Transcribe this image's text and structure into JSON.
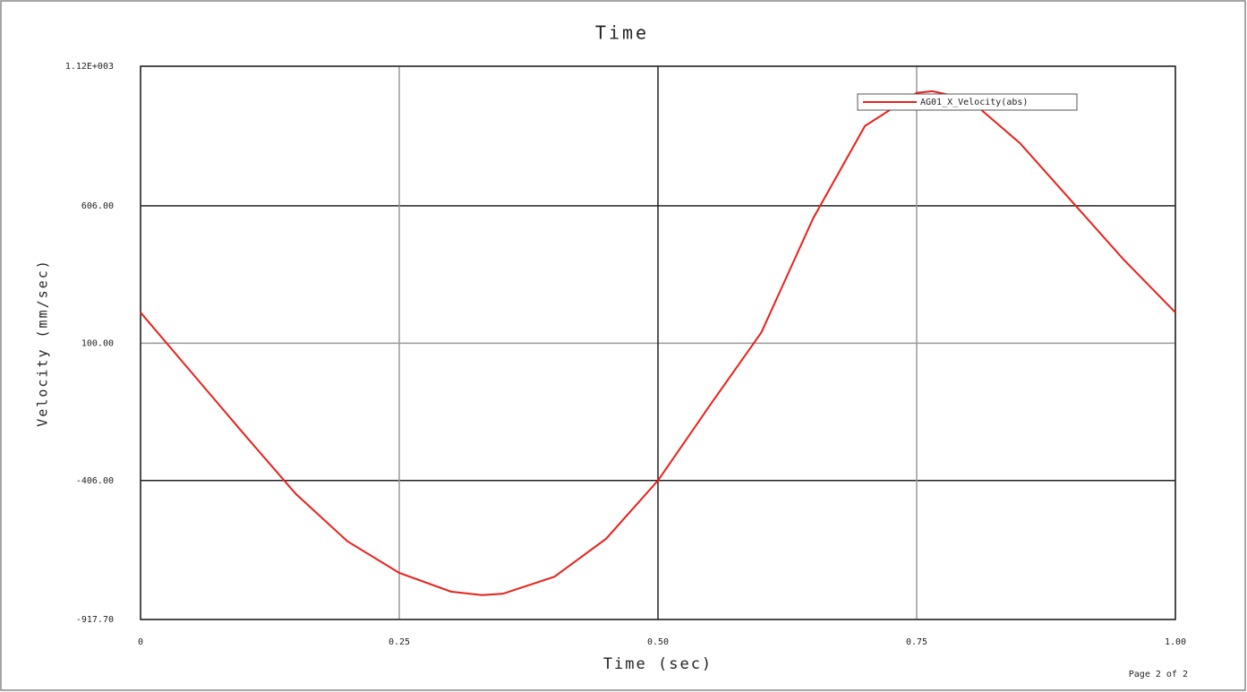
{
  "chart_data": {
    "type": "line",
    "title": "Time",
    "x_label": "Time (sec)",
    "y_label": "Velocity (mm/sec)",
    "footer": "Page 2 of 2",
    "x": [
      0,
      0.05,
      0.1,
      0.15,
      0.2,
      0.25,
      0.3,
      0.33,
      0.35,
      0.4,
      0.45,
      0.5,
      0.55,
      0.6,
      0.65,
      0.7,
      0.75,
      0.765,
      0.8,
      0.85,
      0.9,
      0.95,
      1.0
    ],
    "series": [
      {
        "name": "AG01_X_Velocity(abs)",
        "color": "#e8201a",
        "values": [
          213,
          -11,
          -235,
          -455,
          -630,
          -746,
          -815,
          -828,
          -823,
          -760,
          -620,
          -406,
          -130,
          140,
          560,
          900,
          1022,
          1028,
          1000,
          836,
          622,
          408,
          213
        ]
      }
    ],
    "xlim": [
      0,
      1.0
    ],
    "xticks": [
      0,
      {
        "value": 0.25,
        "label": "0.25"
      },
      {
        "value": 0.5,
        "label": "0.50"
      },
      {
        "value": 0.75,
        "label": "0.75"
      },
      {
        "value": 1.0,
        "label": "1.00"
      }
    ],
    "ylim": [
      -917.7,
      1120
    ],
    "yticks": [
      {
        "value": -917.7,
        "label": "-917.70"
      },
      {
        "value": -406,
        "label": "-406.00"
      },
      {
        "value": 100,
        "label": "100.00"
      },
      {
        "value": 606,
        "label": "606.00"
      },
      {
        "value": 1120,
        "label": "1.12E+003"
      }
    ],
    "grid": true,
    "legend": "upper right"
  }
}
